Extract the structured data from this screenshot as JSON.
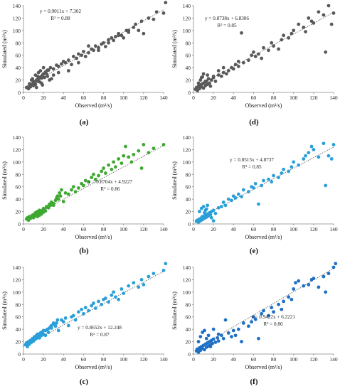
{
  "figure": {
    "panel_labels": [
      "(a)",
      "(d)",
      "(b)",
      "(e)",
      "(c)",
      "(f)"
    ]
  },
  "chart_data": [
    {
      "panel": "(a)",
      "type": "scatter",
      "xlabel": "Observed (m³/s)",
      "ylabel": "Simulated (m³/s)",
      "xlim": [
        0,
        140
      ],
      "ylim": [
        0,
        140
      ],
      "xticks": [
        0,
        20,
        40,
        60,
        80,
        100,
        120,
        140
      ],
      "yticks": [
        0,
        20,
        40,
        60,
        80,
        100,
        120,
        140
      ],
      "color": "#595959",
      "trendline": {
        "slope": 0.9011,
        "intercept": 7.302,
        "equation": "y = 0.9011x + 7.302",
        "r2": "R² = 0.88",
        "style": "dotted"
      },
      "x": [
        3,
        5,
        6,
        7,
        8,
        9,
        10,
        11,
        12,
        13,
        14,
        15,
        16,
        17,
        18,
        19,
        20,
        22,
        24,
        25,
        27,
        30,
        33,
        35,
        38,
        40,
        42,
        45,
        48,
        50,
        53,
        55,
        58,
        60,
        62,
        65,
        68,
        70,
        72,
        75,
        78,
        80,
        82,
        85,
        88,
        90,
        92,
        95,
        98,
        100,
        103,
        105,
        110,
        112,
        115,
        118,
        120,
        125,
        130,
        133,
        140,
        142,
        8,
        12,
        15,
        18,
        21,
        24,
        28,
        10,
        14,
        19,
        23,
        26,
        6,
        9,
        13,
        17,
        20,
        30,
        35,
        45,
        55,
        65,
        75,
        85,
        95,
        105
      ],
      "y": [
        8,
        6,
        10,
        9,
        12,
        14,
        11,
        16,
        13,
        20,
        18,
        22,
        17,
        25,
        23,
        28,
        30,
        33,
        26,
        36,
        40,
        38,
        44,
        32,
        46,
        50,
        48,
        52,
        45,
        58,
        55,
        62,
        60,
        66,
        58,
        64,
        70,
        68,
        75,
        72,
        78,
        80,
        74,
        85,
        88,
        84,
        90,
        95,
        92,
        88,
        100,
        97,
        105,
        110,
        100,
        115,
        95,
        120,
        118,
        130,
        128,
        145,
        20,
        28,
        32,
        15,
        24,
        36,
        22,
        18,
        26,
        12,
        30,
        20,
        14,
        22,
        8,
        35,
        40,
        28,
        42,
        35,
        48,
        75,
        68,
        80,
        92,
        100
      ]
    },
    {
      "panel": "(d)",
      "type": "scatter",
      "xlabel": "Observed (m³/s)",
      "ylabel": "Simulated (m³/s)",
      "xlim": [
        0,
        140
      ],
      "ylim": [
        0,
        140
      ],
      "xticks": [
        0,
        20,
        40,
        60,
        80,
        100,
        120,
        140
      ],
      "yticks": [
        0,
        20,
        40,
        60,
        80,
        100,
        120,
        140
      ],
      "color": "#595959",
      "trendline": {
        "slope": 0.8738,
        "intercept": 6.8306,
        "equation": "y = 0.8738x + 6.8306",
        "r2": "R² = 0.85",
        "style": "dotted"
      },
      "x": [
        2,
        3,
        4,
        5,
        6,
        7,
        8,
        9,
        10,
        11,
        12,
        13,
        14,
        15,
        16,
        18,
        20,
        22,
        25,
        28,
        30,
        33,
        35,
        38,
        40,
        42,
        45,
        48,
        50,
        55,
        58,
        60,
        62,
        65,
        68,
        70,
        75,
        78,
        80,
        85,
        88,
        90,
        95,
        98,
        100,
        105,
        110,
        112,
        115,
        118,
        120,
        125,
        130,
        132,
        135,
        138,
        140,
        5,
        7,
        9,
        12,
        14,
        17,
        8,
        10,
        15,
        20,
        25,
        30,
        45
      ],
      "y": [
        5,
        8,
        3,
        10,
        6,
        12,
        9,
        14,
        7,
        16,
        11,
        18,
        13,
        22,
        15,
        20,
        24,
        18,
        28,
        26,
        32,
        30,
        35,
        40,
        38,
        45,
        42,
        96,
        48,
        52,
        60,
        65,
        58,
        62,
        55,
        72,
        68,
        80,
        75,
        70,
        85,
        92,
        88,
        95,
        100,
        110,
        105,
        98,
        120,
        115,
        112,
        130,
        125,
        65,
        140,
        110,
        128,
        15,
        20,
        25,
        18,
        28,
        10,
        24,
        30,
        22,
        26,
        35,
        40,
        50
      ]
    },
    {
      "panel": "(b)",
      "type": "scatter",
      "xlabel": "Observed (m³/s)",
      "ylabel": "Simulated (m³/s)",
      "xlim": [
        0,
        140
      ],
      "ylim": [
        0,
        140
      ],
      "xticks": [
        0,
        20,
        40,
        60,
        80,
        100,
        120,
        140
      ],
      "yticks": [
        0,
        20,
        40,
        60,
        80,
        100,
        120,
        140
      ],
      "color": "#3fa832",
      "trendline": {
        "slope": 0.8704,
        "intercept": 4.9227,
        "equation": "y = 0.8704x + 4.9227",
        "r2": "R² = 0.86",
        "style": "dotted"
      },
      "x": [
        3,
        4,
        5,
        6,
        7,
        8,
        9,
        10,
        11,
        12,
        13,
        14,
        15,
        16,
        17,
        18,
        19,
        20,
        21,
        22,
        23,
        25,
        27,
        28,
        30,
        32,
        33,
        35,
        37,
        40,
        42,
        45,
        48,
        50,
        52,
        55,
        58,
        60,
        62,
        65,
        68,
        70,
        72,
        75,
        78,
        80,
        82,
        85,
        88,
        90,
        92,
        95,
        98,
        100,
        102,
        105,
        108,
        110,
        115,
        118,
        120,
        125,
        130,
        140,
        8,
        10,
        12,
        14,
        16,
        18,
        20,
        24,
        26,
        28,
        30,
        34,
        36,
        38
      ],
      "y": [
        8,
        10,
        6,
        12,
        9,
        11,
        14,
        10,
        15,
        13,
        16,
        12,
        18,
        14,
        20,
        17,
        22,
        19,
        24,
        21,
        28,
        26,
        30,
        35,
        33,
        38,
        42,
        40,
        45,
        36,
        50,
        48,
        55,
        60,
        52,
        58,
        65,
        62,
        70,
        68,
        75,
        80,
        72,
        78,
        85,
        90,
        82,
        95,
        88,
        100,
        92,
        105,
        98,
        110,
        125,
        108,
        100,
        112,
        118,
        90,
        128,
        115,
        122,
        128,
        12,
        15,
        18,
        20,
        22,
        16,
        25,
        28,
        32,
        35,
        30,
        45,
        50,
        55
      ]
    },
    {
      "panel": "(e)",
      "type": "scatter",
      "xlabel": "Observed (m³/s)",
      "ylabel": "Simulated (m³/s)",
      "xlim": [
        0,
        140
      ],
      "ylim": [
        0,
        140
      ],
      "xticks": [
        0,
        20,
        40,
        60,
        80,
        100,
        120,
        140
      ],
      "yticks": [
        0,
        20,
        40,
        60,
        80,
        100,
        120,
        140
      ],
      "color": "#2b9fd8",
      "trendline": {
        "slope": 0.8515,
        "intercept": 4.8737,
        "equation": "y = 0.8515x + 4.8737",
        "r2": "R² = 0.85",
        "style": "dotted"
      },
      "x": [
        3,
        4,
        5,
        6,
        7,
        8,
        9,
        10,
        11,
        12,
        13,
        14,
        15,
        16,
        17,
        18,
        20,
        22,
        25,
        28,
        30,
        32,
        35,
        38,
        40,
        42,
        45,
        48,
        50,
        55,
        58,
        60,
        62,
        65,
        68,
        70,
        75,
        78,
        80,
        85,
        88,
        90,
        95,
        98,
        100,
        105,
        110,
        112,
        115,
        118,
        120,
        125,
        130,
        132,
        135,
        138,
        140,
        6,
        8,
        10,
        12,
        14,
        16,
        18,
        20,
        9,
        11,
        13
      ],
      "y": [
        4,
        6,
        3,
        8,
        5,
        10,
        7,
        12,
        9,
        14,
        11,
        16,
        13,
        18,
        15,
        20,
        22,
        17,
        26,
        28,
        35,
        30,
        40,
        38,
        45,
        42,
        48,
        44,
        55,
        52,
        60,
        58,
        65,
        32,
        62,
        70,
        72,
        68,
        78,
        75,
        82,
        88,
        85,
        92,
        100,
        95,
        105,
        110,
        115,
        125,
        120,
        108,
        130,
        62,
        110,
        105,
        128,
        20,
        25,
        28,
        22,
        30,
        15,
        10,
        5,
        12,
        18,
        24
      ]
    },
    {
      "panel": "(c)",
      "type": "scatter",
      "xlabel": "Observed (m³/s)",
      "ylabel": "Simulated (m³/s)",
      "xlim": [
        0,
        140
      ],
      "ylim": [
        0,
        140
      ],
      "xticks": [
        0,
        20,
        40,
        60,
        80,
        100,
        120,
        140
      ],
      "yticks": [
        0,
        20,
        40,
        60,
        80,
        100,
        120,
        140
      ],
      "color": "#2b9fd8",
      "trendline": {
        "slope": 0.8652,
        "intercept": 12.248,
        "equation": "y = 0.8652x + 12.248",
        "r2": "R² = 0.87",
        "style": "dotted"
      },
      "x": [
        2,
        3,
        4,
        5,
        6,
        7,
        8,
        9,
        10,
        11,
        12,
        13,
        14,
        15,
        16,
        17,
        18,
        19,
        20,
        22,
        24,
        25,
        27,
        28,
        30,
        32,
        33,
        35,
        38,
        40,
        42,
        45,
        48,
        50,
        52,
        55,
        58,
        60,
        62,
        65,
        68,
        70,
        72,
        75,
        78,
        80,
        82,
        85,
        88,
        90,
        92,
        95,
        98,
        100,
        105,
        110,
        115,
        118,
        120,
        125,
        130,
        140,
        142,
        8,
        10,
        12,
        14,
        16,
        18,
        20,
        22,
        26,
        28,
        30,
        34
      ],
      "y": [
        15,
        18,
        12,
        20,
        16,
        22,
        19,
        25,
        21,
        28,
        24,
        30,
        26,
        32,
        28,
        34,
        30,
        36,
        32,
        38,
        40,
        35,
        44,
        42,
        48,
        45,
        50,
        38,
        55,
        52,
        58,
        46,
        60,
        62,
        55,
        68,
        72,
        65,
        75,
        70,
        78,
        82,
        74,
        85,
        80,
        88,
        90,
        84,
        95,
        100,
        92,
        88,
        105,
        98,
        110,
        115,
        108,
        120,
        112,
        125,
        130,
        135,
        148,
        20,
        24,
        28,
        32,
        26,
        35,
        38,
        30,
        42,
        46,
        50,
        55
      ]
    },
    {
      "panel": "(f)",
      "type": "scatter",
      "xlabel": "Observed (m³/s)",
      "ylabel": "Simulated (m³/s)",
      "xlim": [
        0,
        140
      ],
      "ylim": [
        0,
        140
      ],
      "xticks": [
        0,
        20,
        40,
        60,
        80,
        100,
        120,
        140
      ],
      "yticks": [
        0,
        20,
        40,
        60,
        80,
        100,
        120,
        140
      ],
      "color": "#1f6fc5",
      "trendline": {
        "slope": 0.9422,
        "intercept": 6.2221,
        "equation": "y = 0.9422x + 6.2221",
        "r2": "R² = 0.86",
        "style": "dotted"
      },
      "x": [
        3,
        4,
        5,
        6,
        7,
        8,
        9,
        10,
        11,
        12,
        13,
        14,
        15,
        16,
        17,
        18,
        19,
        20,
        22,
        24,
        25,
        28,
        30,
        32,
        35,
        38,
        40,
        42,
        45,
        48,
        50,
        55,
        58,
        60,
        62,
        65,
        68,
        70,
        75,
        78,
        80,
        85,
        88,
        90,
        95,
        98,
        100,
        102,
        105,
        110,
        115,
        118,
        120,
        125,
        130,
        132,
        135,
        140,
        142,
        5,
        7,
        9,
        11,
        13,
        15,
        17,
        20,
        25
      ],
      "y": [
        5,
        8,
        3,
        10,
        6,
        12,
        9,
        14,
        7,
        16,
        11,
        18,
        13,
        20,
        15,
        22,
        17,
        24,
        19,
        26,
        21,
        30,
        25,
        55,
        34,
        28,
        38,
        30,
        40,
        20,
        50,
        45,
        52,
        60,
        56,
        25,
        65,
        70,
        62,
        75,
        68,
        80,
        72,
        85,
        92,
        88,
        105,
        115,
        118,
        110,
        112,
        120,
        122,
        108,
        125,
        100,
        130,
        140,
        148,
        20,
        28,
        35,
        38,
        25,
        30,
        12,
        40,
        32
      ]
    }
  ]
}
